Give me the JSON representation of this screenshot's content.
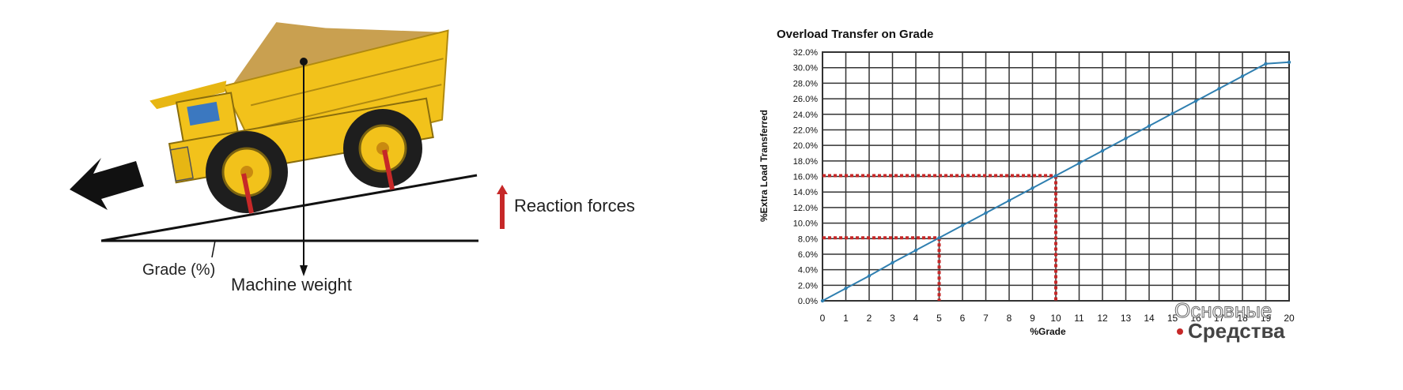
{
  "diagram": {
    "labels": {
      "grade": "Grade (%)",
      "machine_weight": "Machine weight",
      "reaction_forces": "Reaction forces"
    },
    "colors": {
      "truck_body": "#f2c21b",
      "load": "#c9a050",
      "tire": "#1e1e1e",
      "reaction_arrow": "#c62828"
    }
  },
  "chart_data": {
    "type": "line",
    "title": "Overload Transfer on Grade",
    "xlabel": "%Grade",
    "ylabel": "%Extra Load Transferred",
    "x_ticks": [
      "0",
      "1",
      "2",
      "3",
      "4",
      "5",
      "6",
      "7",
      "8",
      "9",
      "10",
      "11",
      "12",
      "13",
      "14",
      "15",
      "16",
      "17",
      "18",
      "19",
      "20"
    ],
    "y_ticks": [
      "0.0%",
      "2.0%",
      "4.0%",
      "6.0%",
      "8.0%",
      "10.0%",
      "12.0%",
      "14.0%",
      "16.0%",
      "18.0%",
      "20.0%",
      "22.0%",
      "24.0%",
      "26.0%",
      "28.0%",
      "30.0%",
      "32.0%"
    ],
    "xlim": [
      0,
      20
    ],
    "ylim": [
      0,
      32
    ],
    "grid": true,
    "series": [
      {
        "x": [
          0,
          1,
          2,
          3,
          4,
          5,
          6,
          7,
          8,
          9,
          10,
          11,
          12,
          13,
          14,
          15,
          16,
          17,
          18,
          19,
          20
        ],
        "values": [
          0,
          1.6,
          3.2,
          4.9,
          6.5,
          8.1,
          9.7,
          11.3,
          12.9,
          14.5,
          16.1,
          17.7,
          19.3,
          20.9,
          22.5,
          24.1,
          25.7,
          27.3,
          28.9,
          30.5,
          30.7
        ]
      }
    ],
    "annotations": [
      {
        "x": 5,
        "y": 8.1,
        "style": "red dotted guide lines"
      },
      {
        "x": 10,
        "y": 16.1,
        "style": "red dotted guide lines"
      }
    ],
    "colors": {
      "line": "#2f7fb0",
      "guide": "#c62828",
      "grid": "#333333"
    }
  },
  "watermark": {
    "line1": "Основные",
    "line2": "Средства"
  }
}
